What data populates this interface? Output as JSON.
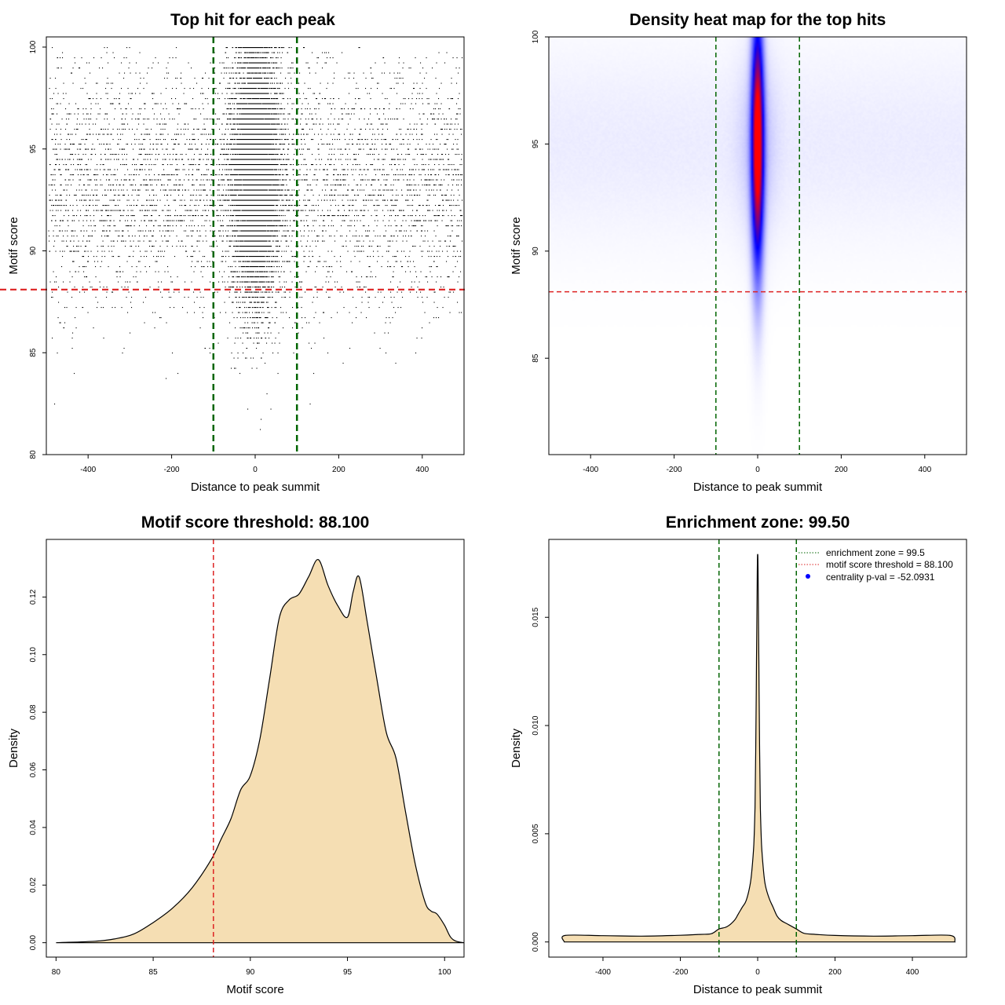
{
  "chart_data": [
    {
      "type": "scatter",
      "title": "Top hit for each peak",
      "xlabel": "Distance to peak summit",
      "ylabel": "Motif score",
      "xlim": [
        -500,
        500
      ],
      "ylim": [
        80,
        100.5
      ],
      "xticks": [
        -400,
        -200,
        0,
        200,
        400
      ],
      "yticks": [
        80,
        85,
        90,
        95,
        100
      ],
      "vlines": [
        -100,
        100
      ],
      "hline": 88.1,
      "colors": {
        "points": "#000000",
        "vline": "#006400",
        "hline": "#dd2222"
      },
      "point_model": {
        "n_background": 5200,
        "n_central": 9000,
        "central_sd": 28,
        "score_mean": 93.3,
        "score_sd": 3.0,
        "score_max": 100
      }
    },
    {
      "type": "heatmap",
      "title": "Density heat map for the top hits",
      "xlabel": "Distance to peak summit",
      "ylabel": "Motif score",
      "xlim": [
        -500,
        500
      ],
      "ylim": [
        80.5,
        100
      ],
      "xticks": [
        -400,
        -200,
        0,
        200,
        400
      ],
      "yticks": [
        85,
        90,
        95,
        100
      ],
      "vlines": [
        -100,
        100
      ],
      "hline": 88.1,
      "colors": {
        "low": "#ffffff",
        "mid": "#0000ff",
        "high": "#ff0000",
        "vline": "#006400",
        "hline": "#dd2222"
      },
      "peak": {
        "x": 0,
        "y": 95,
        "x_sd": 10,
        "y_sd": 3
      }
    },
    {
      "type": "area",
      "title": "Motif score threshold: 88.100",
      "xlabel": "Motif score",
      "ylabel": "Density",
      "xlim": [
        79.5,
        101
      ],
      "ylim": [
        -0.005,
        0.14
      ],
      "xticks": [
        80,
        85,
        90,
        95,
        100
      ],
      "yticks": [
        0.0,
        0.02,
        0.04,
        0.06,
        0.08,
        0.1,
        0.12
      ],
      "ytick_labels": [
        "0.00",
        "0.02",
        "0.04",
        "0.06",
        "0.08",
        "0.10",
        "0.12"
      ],
      "vline": 88.1,
      "x": [
        80,
        82,
        83,
        84,
        85,
        86,
        87,
        88,
        88.5,
        89,
        89.5,
        90,
        90.5,
        91,
        91.5,
        92,
        92.5,
        93,
        93.5,
        94,
        94.5,
        95,
        95.3,
        95.6,
        96,
        96.5,
        97,
        97.5,
        98,
        98.5,
        99,
        99.3,
        99.6,
        100,
        100.3,
        100.6,
        101
      ],
      "values": [
        0,
        0.0005,
        0.0013,
        0.003,
        0.007,
        0.012,
        0.019,
        0.029,
        0.036,
        0.043,
        0.053,
        0.058,
        0.071,
        0.092,
        0.113,
        0.119,
        0.121,
        0.127,
        0.133,
        0.124,
        0.117,
        0.113,
        0.122,
        0.127,
        0.112,
        0.092,
        0.073,
        0.064,
        0.045,
        0.027,
        0.014,
        0.011,
        0.01,
        0.006,
        0.002,
        0.0005,
        0
      ],
      "colors": {
        "fill": "#f5deb3",
        "line": "#000000",
        "vline": "#dd2222"
      }
    },
    {
      "type": "area",
      "title": "Enrichment zone: 99.50",
      "xlabel": "Distance to peak summit",
      "ylabel": "Density",
      "xlim": [
        -540,
        540
      ],
      "ylim": [
        -0.0007,
        0.0186
      ],
      "xticks": [
        -400,
        -200,
        0,
        200,
        400
      ],
      "yticks": [
        0.0,
        0.005,
        0.01,
        0.015
      ],
      "ytick_labels": [
        "0.000",
        "0.005",
        "0.010",
        "0.015"
      ],
      "vlines": [
        -100,
        100
      ],
      "x": [
        -500,
        -498,
        -400,
        -300,
        -200,
        -150,
        -120,
        -100,
        -80,
        -60,
        -50,
        -40,
        -30,
        -20,
        -15,
        -10,
        -7,
        -5,
        -3,
        -1,
        0,
        1,
        3,
        5,
        7,
        10,
        15,
        20,
        30,
        40,
        50,
        60,
        80,
        100,
        120,
        150,
        200,
        300,
        400,
        498,
        510
      ],
      "values": [
        0,
        0.0003,
        0.00029,
        0.00027,
        0.00031,
        0.00035,
        0.00038,
        0.0006,
        0.0007,
        0.001,
        0.0013,
        0.0016,
        0.0019,
        0.0026,
        0.0033,
        0.0045,
        0.0062,
        0.0088,
        0.013,
        0.0172,
        0.0179,
        0.0172,
        0.013,
        0.0088,
        0.0062,
        0.0045,
        0.0033,
        0.0026,
        0.002,
        0.0016,
        0.0012,
        0.001,
        0.0008,
        0.0006,
        0.0004,
        0.00035,
        0.0003,
        0.00027,
        0.00029,
        0.0003,
        0
      ],
      "colors": {
        "fill": "#f5deb3",
        "line": "#000000",
        "vline": "#006400"
      },
      "legend": {
        "position": "top-right",
        "entries": [
          {
            "label": "enrichment zone = 99.5",
            "style": "dotted",
            "color": "#006400"
          },
          {
            "label": "motif score threshold = 88.100",
            "style": "dotted",
            "color": "#dd2222"
          },
          {
            "label": "centrality p-val = -52.0931",
            "style": "point",
            "color": "#0000ff"
          }
        ]
      }
    }
  ]
}
